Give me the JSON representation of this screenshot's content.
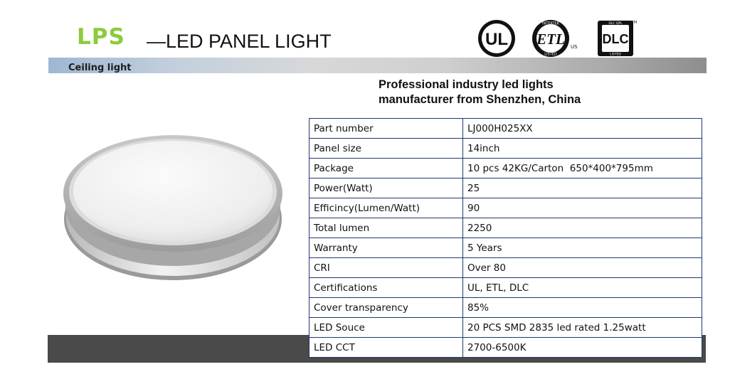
{
  "header": {
    "brand": "LPS",
    "title": "—LED PANEL LIGHT",
    "logos": [
      {
        "icon": "ul-logo-icon",
        "text": "UL"
      },
      {
        "icon": "etl-logo-icon",
        "text": "ETL",
        "ring_text": "INTERTEK",
        "bottom_text": "LISTED",
        "side_text": "US"
      },
      {
        "icon": "dlc-logo-icon",
        "text": "DLC",
        "ring_text": "DLC QPL",
        "bottom_text": "LISTED",
        "tm": "TM"
      }
    ]
  },
  "band": {
    "label": "Ceiling light"
  },
  "headline": {
    "line1": "Professional industry led lights",
    "line2": "manufacturer from Shenzhen, China"
  },
  "product_image": {
    "icon": "ceiling-light-icon"
  },
  "specs": [
    {
      "label": "Part number",
      "value": "LJ000H025XX"
    },
    {
      "label": "Panel size",
      "value": "14inch"
    },
    {
      "label": "Package",
      "value": "10 pcs 42KG/Carton  650*400*795mm"
    },
    {
      "label": "Power(Watt)",
      "value": "25"
    },
    {
      "label": "Efficincy(Lumen/Watt)",
      "value": "90"
    },
    {
      "label": "Total lumen",
      "value": "2250"
    },
    {
      "label": "Warranty",
      "value": "5 Years"
    },
    {
      "label": "CRI",
      "value": "Over 80"
    },
    {
      "label": "Certifications",
      "value": "UL, ETL, DLC"
    },
    {
      "label": "Cover transparency",
      "value": "85%"
    },
    {
      "label": "LED Souce",
      "value": "20 PCS SMD 2835 led rated 1.25watt"
    },
    {
      "label": "LED CCT",
      "value": "2700-6500K"
    }
  ],
  "colors": {
    "brand": "#8ccb3c",
    "table_border": "#1f3a6b",
    "footer_band": "#4a4a4a"
  }
}
